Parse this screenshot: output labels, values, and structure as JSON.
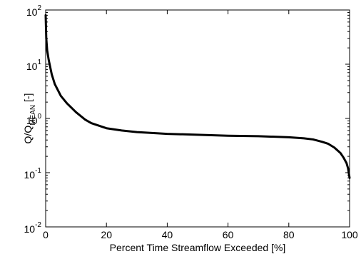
{
  "chart_data": {
    "type": "line",
    "title": "",
    "xlabel": "Percent Time Streamflow Exceeded [%]",
    "ylabel": {
      "main": "Q/Q",
      "subscript": "MEAN",
      "unit": " [-]"
    },
    "xlim": [
      0,
      100
    ],
    "ylim": [
      0.01,
      100
    ],
    "yscale": "log",
    "grid": false,
    "legend": "none",
    "x_ticks": [
      0,
      20,
      40,
      60,
      80,
      100
    ],
    "x_tick_labels": [
      "0",
      "20",
      "40",
      "60",
      "80",
      "100"
    ],
    "y_ticks": [
      {
        "value": 100,
        "base": "10",
        "exp": "2"
      },
      {
        "value": 10,
        "base": "10",
        "exp": "1"
      },
      {
        "value": 1,
        "base": "10",
        "exp": "0"
      },
      {
        "value": 0.1,
        "base": "10",
        "exp": "-1"
      },
      {
        "value": 0.01,
        "base": "10",
        "exp": "-2"
      }
    ],
    "line_color": "#000000",
    "series": [
      {
        "x": [
          0,
          0.2,
          0.5,
          1,
          2,
          3,
          5,
          7,
          10,
          13,
          15,
          20,
          25,
          30,
          40,
          50,
          60,
          70,
          80,
          85,
          88,
          91,
          93,
          95,
          97,
          98,
          99,
          99.5,
          100
        ],
        "y": [
          80,
          30,
          18,
          12,
          6.5,
          4.3,
          2.6,
          1.9,
          1.3,
          0.95,
          0.82,
          0.66,
          0.6,
          0.56,
          0.52,
          0.5,
          0.48,
          0.47,
          0.45,
          0.43,
          0.41,
          0.37,
          0.34,
          0.29,
          0.23,
          0.19,
          0.15,
          0.12,
          0.08
        ]
      }
    ]
  }
}
